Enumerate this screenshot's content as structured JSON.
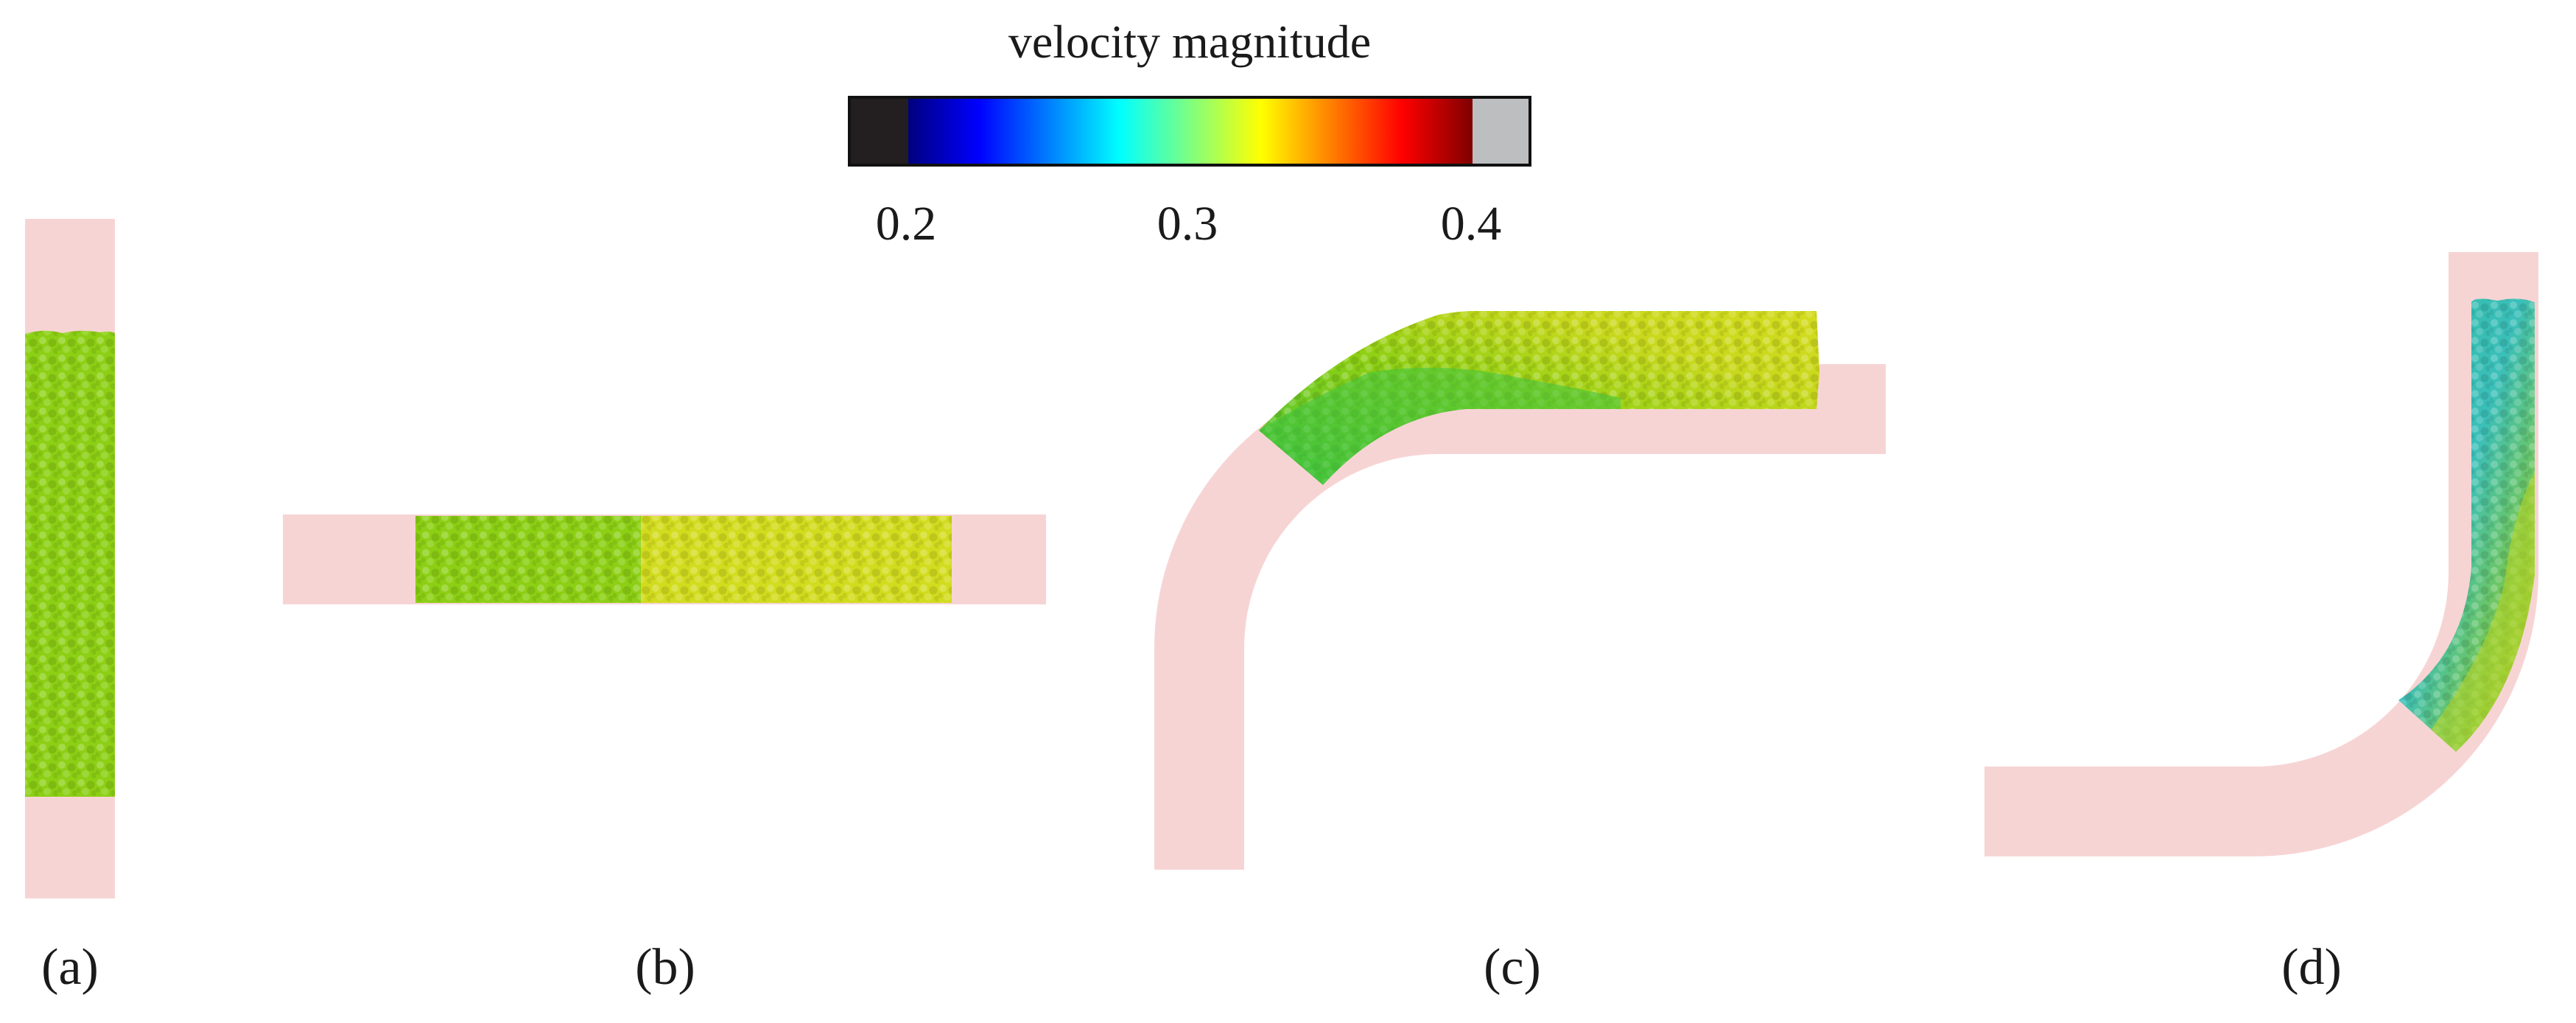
{
  "colorbar": {
    "title": "velocity magnitude",
    "ticks": [
      "0.2",
      "0.3",
      "0.4"
    ],
    "range": [
      0.2,
      0.4
    ],
    "under_color": "#231f20",
    "over_color": "#bcbec0",
    "colormap": [
      "#00007f",
      "#0000ff",
      "#007fff",
      "#00ffff",
      "#7fff7f",
      "#ffff00",
      "#ff7f00",
      "#ff0000",
      "#7f0000"
    ]
  },
  "panels": [
    {
      "label": "(a)",
      "geometry": "vertical straight pipe",
      "velocity_levels": [
        0.315
      ]
    },
    {
      "label": "(b)",
      "geometry": "horizontal straight pipe",
      "velocity_levels": [
        0.31,
        0.335
      ]
    },
    {
      "label": "(c)",
      "geometry": "90 degree bend, flow up and turning right",
      "velocity_levels": [
        0.3,
        0.335
      ]
    },
    {
      "label": "(d)",
      "geometry": "90 degree bend, flow left turning up",
      "velocity_levels": [
        0.275,
        0.32
      ]
    }
  ],
  "colors": {
    "pipe": "#f7d4d4",
    "particle_green": "#8ccf14",
    "particle_yellow": "#d2dc1e",
    "particle_teal": "#32beb9"
  }
}
